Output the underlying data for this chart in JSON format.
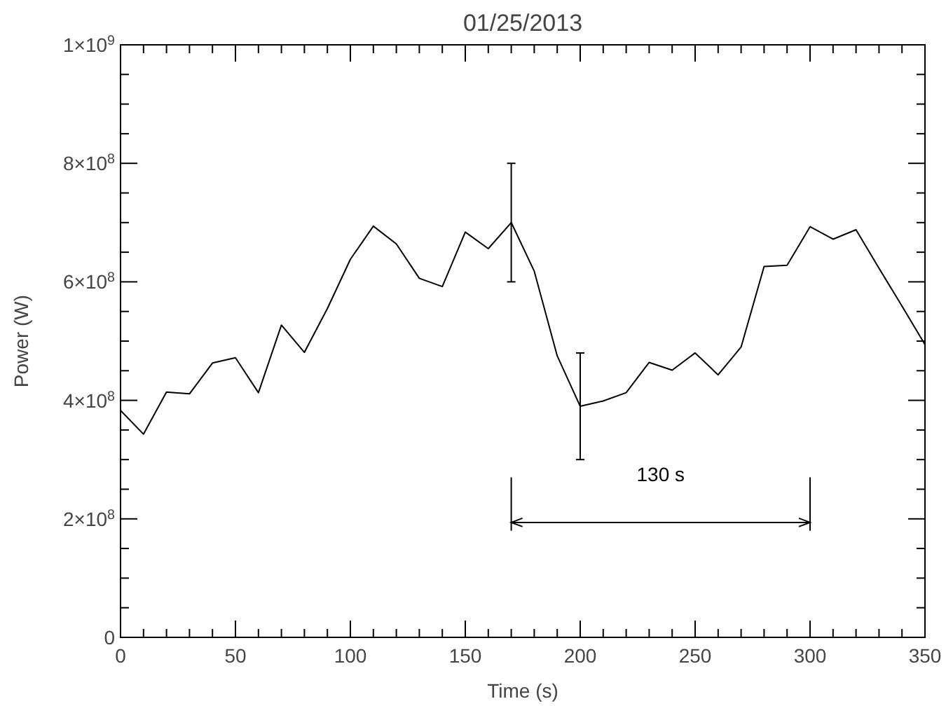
{
  "chart_data": {
    "type": "line",
    "title": "01/25/2013",
    "xlabel": "Time (s)",
    "ylabel": "Power (W)",
    "x": [
      0,
      10,
      20,
      30,
      40,
      50,
      60,
      70,
      80,
      90,
      100,
      110,
      120,
      130,
      140,
      150,
      160,
      170,
      180,
      190,
      200,
      210,
      220,
      230,
      240,
      250,
      260,
      270,
      280,
      290,
      300,
      310,
      320,
      330,
      340,
      350
    ],
    "series": [
      {
        "color": "#000000",
        "values": [
          383000000.0,
          343000000.0,
          414000000.0,
          411000000.0,
          463000000.0,
          472000000.0,
          413000000.0,
          527000000.0,
          481000000.0,
          555000000.0,
          638000000.0,
          694000000.0,
          664000000.0,
          606000000.0,
          592000000.0,
          684000000.0,
          656000000.0,
          700000000.0,
          618000000.0,
          475000000.0,
          390000000.0,
          399000000.0,
          413000000.0,
          464000000.0,
          451000000.0,
          480000000.0,
          443000000.0,
          490000000.0,
          626000000.0,
          628000000.0,
          693000000.0,
          672000000.0,
          688000000.0,
          623000000.0,
          559000000.0,
          494000000.0
        ],
        "errors": [
          null,
          null,
          null,
          null,
          null,
          null,
          null,
          null,
          null,
          null,
          null,
          null,
          null,
          null,
          null,
          null,
          null,
          100000000.0,
          null,
          null,
          90000000.0,
          null,
          null,
          null,
          null,
          null,
          null,
          null,
          null,
          null,
          null,
          null,
          null,
          null,
          null,
          null
        ]
      }
    ],
    "xlim": [
      0,
      350
    ],
    "ylim": [
      0,
      1000000000.0
    ],
    "xticks": [
      0,
      {
        "value": 10,
        "label": null
      },
      {
        "value": 20,
        "label": null
      },
      {
        "value": 30,
        "label": null
      },
      {
        "value": 40,
        "label": null
      },
      50,
      {
        "value": 60,
        "label": null
      },
      {
        "value": 70,
        "label": null
      },
      {
        "value": 80,
        "label": null
      },
      {
        "value": 90,
        "label": null
      },
      100,
      {
        "value": 110,
        "label": null
      },
      {
        "value": 120,
        "label": null
      },
      {
        "value": 130,
        "label": null
      },
      {
        "value": 140,
        "label": null
      },
      150,
      {
        "value": 160,
        "label": null
      },
      {
        "value": 170,
        "label": null
      },
      {
        "value": 180,
        "label": null
      },
      {
        "value": 190,
        "label": null
      },
      200,
      {
        "value": 210,
        "label": null
      },
      {
        "value": 220,
        "label": null
      },
      {
        "value": 230,
        "label": null
      },
      {
        "value": 240,
        "label": null
      },
      250,
      {
        "value": 260,
        "label": null
      },
      {
        "value": 270,
        "label": null
      },
      {
        "value": 280,
        "label": null
      },
      {
        "value": 290,
        "label": null
      },
      300,
      {
        "value": 310,
        "label": null
      },
      {
        "value": 320,
        "label": null
      },
      {
        "value": 330,
        "label": null
      },
      {
        "value": 340,
        "label": null
      },
      350
    ],
    "yticks": [
      0,
      {
        "value": 50000000.0,
        "label": null
      },
      {
        "value": 100000000.0,
        "label": null
      },
      {
        "value": 150000000.0,
        "label": null
      },
      {
        "value": 200000000.0,
        "label": "2×10$^{8}$"
      },
      {
        "value": 250000000.0,
        "label": null
      },
      {
        "value": 300000000.0,
        "label": null
      },
      {
        "value": 350000000.0,
        "label": null
      },
      {
        "value": 400000000.0,
        "label": "4×10$^{8}$"
      },
      {
        "value": 450000000.0,
        "label": null
      },
      {
        "value": 500000000.0,
        "label": null
      },
      {
        "value": 550000000.0,
        "label": null
      },
      {
        "value": 600000000.0,
        "label": "6×10$^{8}$"
      },
      {
        "value": 650000000.0,
        "label": null
      },
      {
        "value": 700000000.0,
        "label": null
      },
      {
        "value": 750000000.0,
        "label": null
      },
      {
        "value": 800000000.0,
        "label": "8×10$^{8}$"
      },
      {
        "value": 850000000.0,
        "label": null
      },
      {
        "value": 900000000.0,
        "label": null
      },
      {
        "value": 950000000.0,
        "label": null
      },
      {
        "value": 1000000000.0,
        "label": "1×10$^{9}$"
      }
    ],
    "annotations": [
      "130 s"
    ],
    "grid": false,
    "marker": "none",
    "line_style": "solid"
  }
}
